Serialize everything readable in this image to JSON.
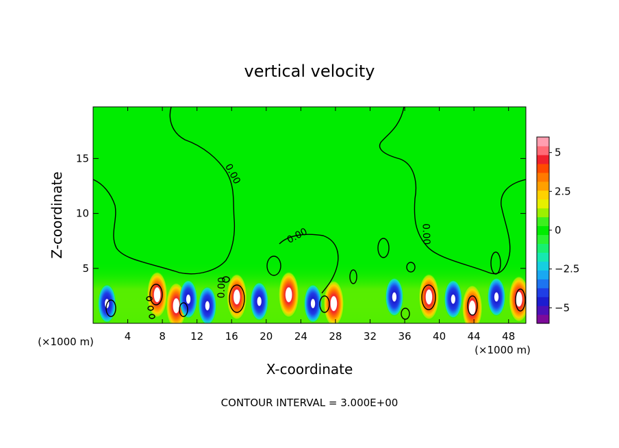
{
  "chart_data": {
    "type": "heatmap",
    "title": "vertical velocity",
    "xlabel": "X-coordinate",
    "ylabel": "Z-coordinate",
    "x_unit_left": "(×1000 m)",
    "x_unit_right": "(×1000 m)",
    "footer": "CONTOUR INTERVAL = 3.000E+00",
    "xlim": [
      0,
      50
    ],
    "ylim": [
      0,
      19.7
    ],
    "x_ticks": [
      "4",
      "8",
      "12",
      "16",
      "20",
      "24",
      "28",
      "32",
      "36",
      "40",
      "44",
      "48"
    ],
    "y_ticks": [
      "5",
      "10",
      "15"
    ],
    "contour_labels": [
      "0.00",
      "0.00",
      "0.00",
      "0.00"
    ],
    "colorbar": {
      "range": [
        -6,
        6
      ],
      "ticks": [
        "5",
        "2.5",
        "0",
        "−2.5",
        "−5"
      ],
      "tick_values": [
        5,
        2.5,
        0,
        -2.5,
        -5
      ],
      "colors": [
        "#7d0a9a",
        "#4b10b8",
        "#1c1cd0",
        "#1f3ee6",
        "#1d74f0",
        "#19a8f2",
        "#16cfe0",
        "#16e8b0",
        "#18f070",
        "#2af232",
        "#00ec00",
        "#3cf01e",
        "#9cf000",
        "#e6f000",
        "#ffd200",
        "#ffa000",
        "#ff7a00",
        "#ff4a00",
        "#f0202c",
        "#ff6a76",
        "#ff9eb0"
      ]
    },
    "features": [
      {
        "x": 1.6,
        "z": 1.8,
        "sign": "down"
      },
      {
        "x": 7.4,
        "z": 2.6,
        "sign": "up"
      },
      {
        "x": 9.6,
        "z": 1.6,
        "sign": "up"
      },
      {
        "x": 11.0,
        "z": 2.2,
        "sign": "down"
      },
      {
        "x": 13.2,
        "z": 1.6,
        "sign": "down"
      },
      {
        "x": 16.6,
        "z": 2.4,
        "sign": "up"
      },
      {
        "x": 19.2,
        "z": 2.0,
        "sign": "down"
      },
      {
        "x": 22.6,
        "z": 2.6,
        "sign": "up"
      },
      {
        "x": 25.4,
        "z": 1.8,
        "sign": "down"
      },
      {
        "x": 27.8,
        "z": 1.8,
        "sign": "up"
      },
      {
        "x": 34.8,
        "z": 2.4,
        "sign": "down"
      },
      {
        "x": 38.8,
        "z": 2.4,
        "sign": "up"
      },
      {
        "x": 41.6,
        "z": 2.2,
        "sign": "down"
      },
      {
        "x": 43.8,
        "z": 1.4,
        "sign": "up"
      },
      {
        "x": 46.6,
        "z": 2.4,
        "sign": "down"
      },
      {
        "x": 49.2,
        "z": 2.2,
        "sign": "up"
      }
    ]
  }
}
